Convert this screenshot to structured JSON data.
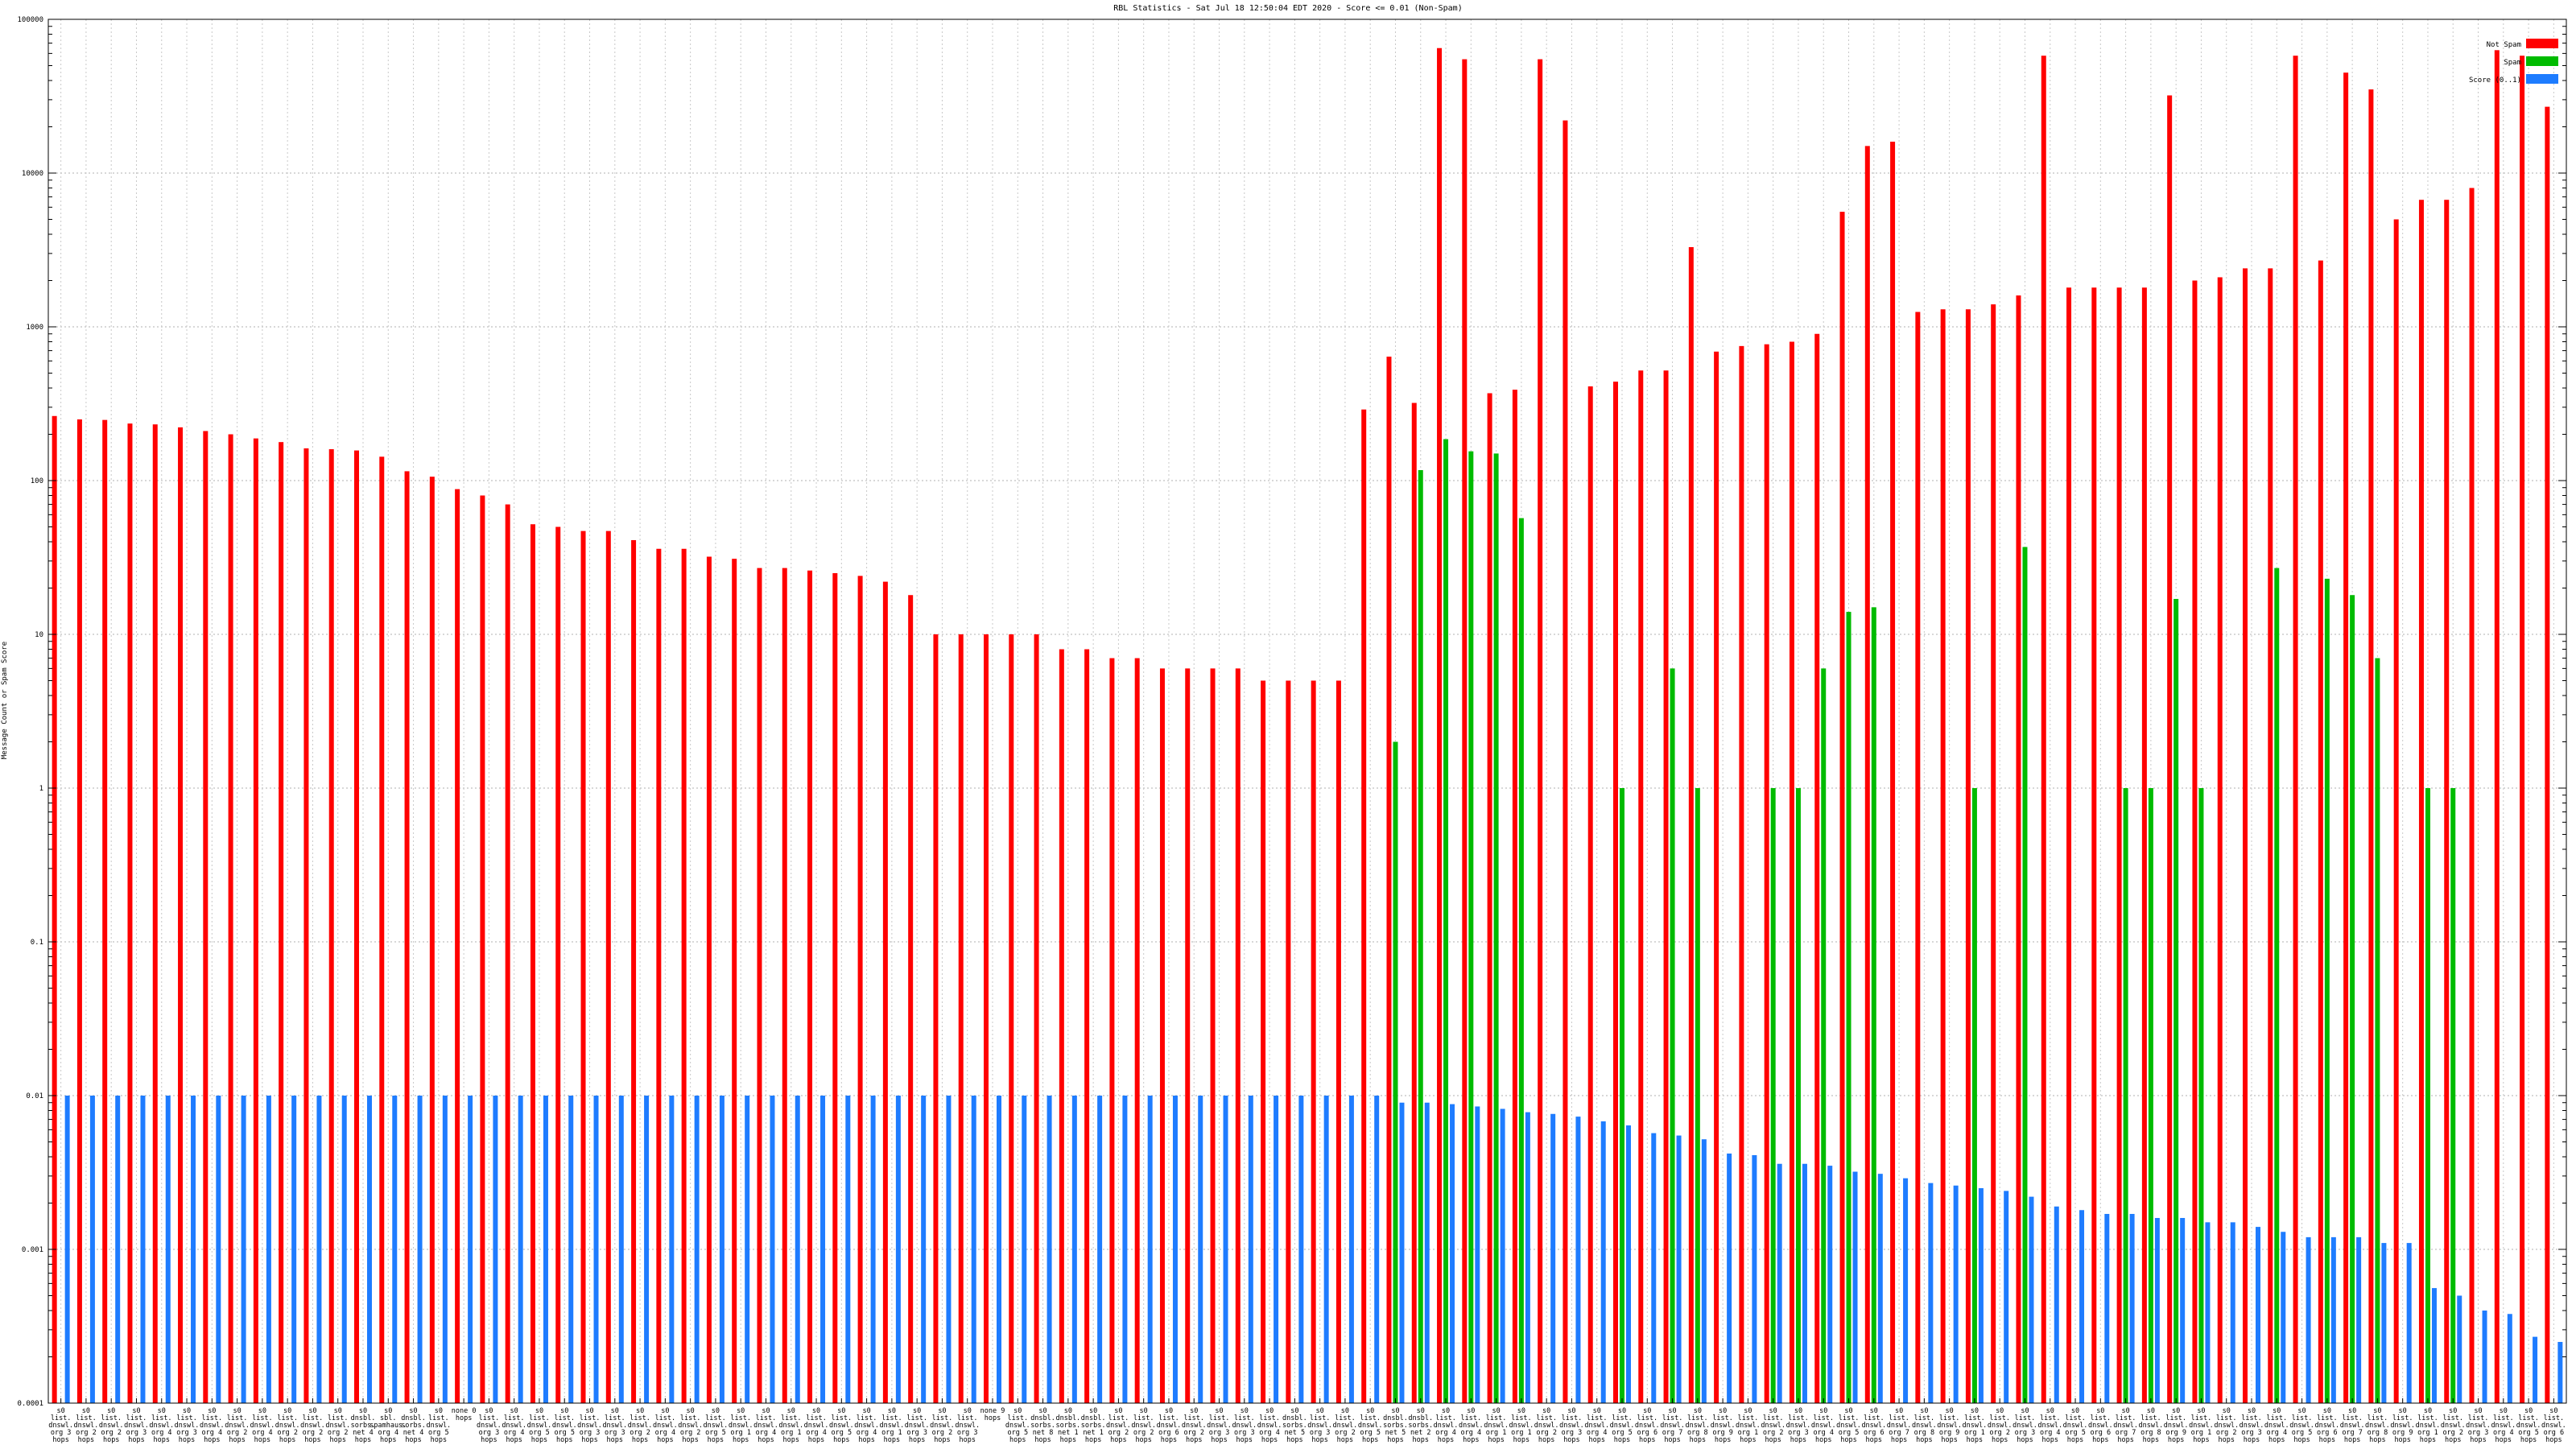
{
  "chart_data": {
    "type": "bar",
    "title": "RBL Statistics - Sat Jul 18 12:50:04 EDT 2020 - Score <= 0.01 (Non-Spam)",
    "ylabel": "Message Count or Spam Score",
    "xlabel": "",
    "yscale": "log",
    "ylim": [
      0.0001,
      100000
    ],
    "yticks": [
      {
        "value": 0.0001,
        "label": "0.0001"
      },
      {
        "value": 0.001,
        "label": "0.001"
      },
      {
        "value": 0.01,
        "label": "0.01"
      },
      {
        "value": 0.1,
        "label": "0.1"
      },
      {
        "value": 1,
        "label": "1"
      },
      {
        "value": 10,
        "label": "10"
      },
      {
        "value": 100,
        "label": "100"
      },
      {
        "value": 1000,
        "label": "1000"
      },
      {
        "value": 10000,
        "label": "10000"
      },
      {
        "value": 100000,
        "label": "100000"
      }
    ],
    "grid": true,
    "legend_position": "top-right",
    "categories": [
      "s0 list. dnswl. org 3 hops",
      "s0 list. dnswl. org 2 hops",
      "s0 list. dnswl. org 2 hops",
      "s0 list. dnswl. org 3 hops",
      "s0 list. dnswl. org 4 hops",
      "s0 list. dnswl. org 3 hops",
      "s0 list. dnswl. org 4 hops",
      "s0 list. dnswl. org 2 hops",
      "s0 list. dnswl. org 4 hops",
      "s0 list. dnswl. org 2 hops",
      "s0 list. dnswl. org 2 hops",
      "s0 list. dnswl. org 2 hops",
      "s0 dnsbl. sorbs. net 4 hops",
      "s0 sbl. spamhaus. org 4 hops",
      "s0 dnsbl. sorbs. net 4 hops",
      "s0 list. dnswl. org 5 hops",
      "none 0 hops",
      "s0 list. dnswl. org 3 hops",
      "s0 list. dnswl. org 4 hops",
      "s0 list. dnswl. org 5 hops",
      "s0 list. dnswl. org 5 hops",
      "s0 list. dnswl. org 3 hops",
      "s0 list. dnswl. org 3 hops",
      "s0 list. dnswl. org 2 hops",
      "s0 list. dnswl. org 4 hops",
      "s0 list. dnswl. org 2 hops",
      "s0 list. dnswl. org 5 hops",
      "s0 list. dnswl. org 1 hops",
      "s0 list. dnswl. org 4 hops",
      "s0 list. dnswl. org 1 hops",
      "s0 list. dnswl. org 4 hops",
      "s0 list. dnswl. org 5 hops",
      "s0 list. dnswl. org 4 hops",
      "s0 list. dnswl. org 1 hops",
      "s0 list. dnswl. org 3 hops",
      "s0 list. dnswl. org 2 hops",
      "s0 list. dnswl. org 3 hops",
      "none 9 hops",
      "s0 list. dnswl. org 5 hops",
      "s0 dnsbl. sorbs. net 8 hops",
      "s0 dnsbl. sorbs. net 1 hops",
      "s0 dnsbl. sorbs. net 1 hops",
      "s0 list. dnswl. org 2 hops",
      "s0 list. dnswl. org 2 hops",
      "s0 list. dnswl. org 6 hops",
      "s0 list. dnswl. org 2 hops",
      "s0 list. dnswl. org 3 hops",
      "s0 list. dnswl. org 3 hops",
      "s0 list. dnswl. org 4 hops",
      "s0 dnsbl. sorbs. net 5 hops",
      "s0 list. dnswl. org 3 hops",
      "s0 list. dnswl. org 2 hops",
      "s0 list. dnswl. org 5 hops",
      "s0 dnsbl. sorbs. net 5 hops",
      "s0 dnsbl. sorbs. net 2 hops",
      "s0 list. dnswl. org 4 hops",
      "s0 list. dnswl. org 4 hops",
      "s0 list. dnswl. org 1 hops",
      "s0 list. dnswl. org 1 hops",
      "s0 list. dnswl. org 2 hops",
      "s0 list. dnswl. org 3 hops",
      "s0 list. dnswl. org 4 hops",
      "s0 list. dnswl. org 5 hops",
      "s0 list. dnswl. org 6 hops",
      "s0 list. dnswl. org 7 hops",
      "s0 list. dnswl. org 8 hops",
      "s0 list. dnswl. org 9 hops",
      "s0 list. dnswl. org 1 hops",
      "s0 list. dnswl. org 2 hops",
      "s0 list. dnswl. org 3 hops",
      "s0 list. dnswl. org 4 hops",
      "s0 list. dnswl. org 5 hops",
      "s0 list. dnswl. org 6 hops",
      "s0 list. dnswl. org 7 hops",
      "s0 list. dnswl. org 8 hops",
      "s0 list. dnswl. org 9 hops",
      "s0 list. dnswl. org 1 hops",
      "s0 list. dnswl. org 2 hops",
      "s0 list. dnswl. org 3 hops",
      "s0 list. dnswl. org 4 hops",
      "s0 list. dnswl. org 5 hops",
      "s0 list. dnswl. org 6 hops",
      "s0 list. dnswl. org 7 hops",
      "s0 list. dnswl. org 8 hops",
      "s0 list. dnswl. org 9 hops",
      "s0 list. dnswl. org 1 hops",
      "s0 list. dnswl. org 2 hops",
      "s0 list. dnswl. org 3 hops",
      "s0 list. dnswl. org 4 hops",
      "s0 list. dnswl. org 5 hops",
      "s0 list. dnswl. org 6 hops",
      "s0 list. dnswl. org 7 hops",
      "s0 list. dnswl. org 8 hops",
      "s0 list. dnswl. org 9 hops",
      "s0 list. dnswl. org 1 hops",
      "s0 list. dnswl. org 2 hops",
      "s0 list. dnswl. org 3 hops",
      "s0 list. dnswl. org 4 hops",
      "s0 list. dnswl. org 5 hops",
      "s0 list. dnswl. org 6 hops"
    ],
    "series": [
      {
        "name": "Not Spam",
        "color": "#ff0000",
        "values": [
          263,
          250,
          248,
          235,
          232,
          222,
          210,
          200,
          188,
          178,
          162,
          160,
          157,
          143,
          115,
          106,
          88,
          80,
          70,
          52,
          50,
          47,
          47,
          41,
          36,
          36,
          32,
          31,
          27,
          27,
          26,
          25,
          24,
          22,
          18,
          10,
          10,
          10,
          10,
          10,
          8,
          8,
          7,
          7,
          6,
          6,
          6,
          6,
          5,
          5,
          5,
          5,
          290,
          640,
          320,
          65000,
          55000,
          370,
          390,
          55000,
          22000,
          410,
          440,
          520,
          520,
          3300,
          690,
          750,
          770,
          800,
          900,
          5600,
          15000,
          16000,
          1250,
          1300,
          1300,
          1400,
          1600,
          58000,
          1800,
          1800,
          1800,
          1800,
          32000,
          2000,
          2100,
          2400,
          2400,
          58000,
          2700,
          45000,
          35000,
          5000,
          6700,
          6700,
          8000,
          63000,
          58000,
          27000
        ]
      },
      {
        "name": "Spam",
        "color": "#00bb00",
        "values": [
          null,
          null,
          null,
          null,
          null,
          null,
          null,
          null,
          null,
          null,
          null,
          null,
          null,
          null,
          null,
          null,
          null,
          null,
          null,
          null,
          null,
          null,
          null,
          null,
          null,
          null,
          null,
          null,
          null,
          null,
          null,
          null,
          null,
          null,
          null,
          null,
          null,
          null,
          null,
          null,
          null,
          null,
          null,
          null,
          null,
          null,
          null,
          null,
          null,
          null,
          null,
          null,
          null,
          2,
          117,
          186,
          155,
          150,
          57,
          null,
          null,
          null,
          1,
          null,
          6,
          1,
          null,
          null,
          1,
          1,
          6,
          14,
          15,
          null,
          null,
          null,
          1,
          null,
          37,
          null,
          null,
          null,
          1,
          1,
          17,
          1,
          null,
          null,
          27,
          null,
          23,
          18,
          7,
          null,
          1,
          1,
          null,
          null,
          null,
          null
        ]
      },
      {
        "name": "Score (0..1)",
        "color": "#1e7cff",
        "values": [
          0.01,
          0.01,
          0.01,
          0.01,
          0.01,
          0.01,
          0.01,
          0.01,
          0.01,
          0.01,
          0.01,
          0.01,
          0.01,
          0.01,
          0.01,
          0.01,
          0.01,
          0.01,
          0.01,
          0.01,
          0.01,
          0.01,
          0.01,
          0.01,
          0.01,
          0.01,
          0.01,
          0.01,
          0.01,
          0.01,
          0.01,
          0.01,
          0.01,
          0.01,
          0.01,
          0.01,
          0.01,
          0.01,
          0.01,
          0.01,
          0.01,
          0.01,
          0.01,
          0.01,
          0.01,
          0.01,
          0.01,
          0.01,
          0.01,
          0.01,
          0.01,
          0.01,
          0.01,
          0.009,
          0.009,
          0.0088,
          0.0085,
          0.0082,
          0.0078,
          0.0076,
          0.0073,
          0.0068,
          0.0064,
          0.0057,
          0.0055,
          0.0052,
          0.0042,
          0.0041,
          0.0036,
          0.0036,
          0.0035,
          0.0032,
          0.0031,
          0.0029,
          0.0027,
          0.0026,
          0.0025,
          0.0024,
          0.0022,
          0.0019,
          0.0018,
          0.0017,
          0.0017,
          0.0016,
          0.0016,
          0.0015,
          0.0015,
          0.0014,
          0.0013,
          0.0012,
          0.0012,
          0.0012,
          0.0011,
          0.0011,
          0.00056,
          0.0005,
          0.0004,
          0.00038,
          0.00027,
          0.00025
        ]
      }
    ]
  }
}
